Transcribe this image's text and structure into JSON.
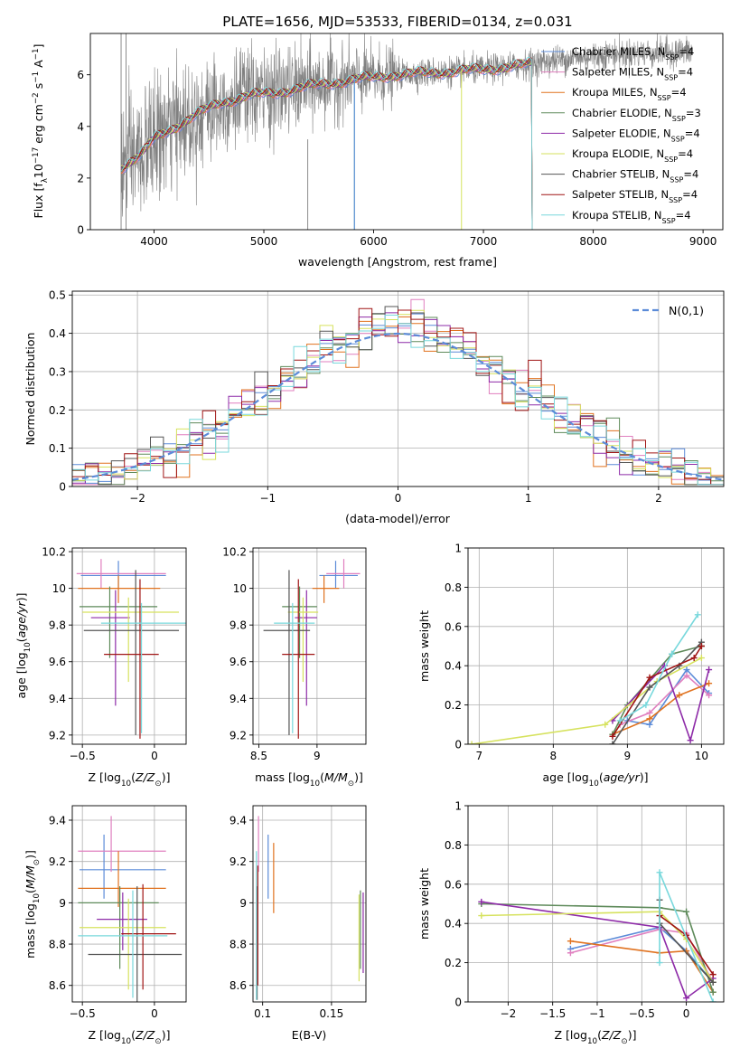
{
  "figure_title": "PLATE=1656, MJD=53533, FIBERID=0134, z=0.031",
  "palette": {
    "Chabrier MILES": "#5b8bd8",
    "Salpeter MILES": "#e07fbf",
    "Kroupa MILES": "#e0721f",
    "Chabrier ELODIE": "#5e8a5a",
    "Salpeter ELODIE": "#8e2ba8",
    "Kroupa ELODIE": "#d6e25e",
    "Chabrier STELIB": "#555555",
    "Salpeter STELIB": "#a01515",
    "Kroupa STELIB": "#78d8dc",
    "data": "#808080"
  },
  "chart_data": [
    {
      "id": "spectrum",
      "type": "line",
      "title": "PLATE=1656, MJD=53533, FIBERID=0134, z=0.031",
      "xlabel": "wavelength [Angstrom, rest frame]",
      "ylabel": "Flux [f_λ 10^-17 erg cm^-2 s^-1 A^-1]",
      "xlim": [
        3420,
        9180
      ],
      "ylim": [
        0,
        7.6
      ],
      "xticks": [
        4000,
        5000,
        6000,
        7000,
        8000,
        9000
      ],
      "yticks": [
        0,
        2,
        4,
        6
      ],
      "legend_position": "right",
      "data_range": [
        3700,
        8900
      ],
      "model_range": [
        3700,
        7440
      ],
      "continuum": {
        "x": [
          3700,
          3900,
          4000,
          4200,
          4400,
          4600,
          4860,
          5100,
          5400,
          5800,
          6200,
          6600,
          7000,
          7400,
          7800,
          8200,
          8600,
          8900
        ],
        "y": [
          2.4,
          3.0,
          3.5,
          4.0,
          4.5,
          4.9,
          5.2,
          5.3,
          5.55,
          5.8,
          6.0,
          6.1,
          6.2,
          6.4,
          6.65,
          6.8,
          6.85,
          6.9
        ]
      },
      "series": [
        {
          "name": "Chabrier MILES, N_SSP=4"
        },
        {
          "name": "Salpeter MILES, N_SSP=4"
        },
        {
          "name": "Kroupa MILES, N_SSP=4"
        },
        {
          "name": "Chabrier ELODIE, N_SSP=3"
        },
        {
          "name": "Salpeter ELODIE, N_SSP=4"
        },
        {
          "name": "Kroupa ELODIE, N_SSP=4"
        },
        {
          "name": "Chabrier STELIB, N_SSP=4"
        },
        {
          "name": "Salpeter STELIB, N_SSP=4"
        },
        {
          "name": "Kroupa STELIB, N_SSP=4"
        }
      ]
    },
    {
      "id": "residuals",
      "type": "histogram",
      "xlabel": "(data-model)/error",
      "ylabel": "Normed distribution",
      "xlim": [
        -2.5,
        2.5
      ],
      "ylim": [
        0,
        0.51
      ],
      "xticks": [
        -2,
        -1,
        0,
        1,
        2
      ],
      "yticks": [
        0,
        0.1,
        0.2,
        0.3,
        0.4,
        0.5
      ],
      "bin_width": 0.1,
      "reference_label": "N(0,1)",
      "legend_position": "top-right"
    },
    {
      "id": "age_vs_Z",
      "type": "errorbar",
      "xlabel": "Z [log10(Z/Z⊙)]",
      "ylabel": "age [log10(age/yr)]",
      "xlim": [
        -0.57,
        0.22
      ],
      "ylim": [
        9.15,
        10.22
      ],
      "xticks": [
        -0.5,
        0.0
      ],
      "yticks": [
        9.2,
        9.4,
        9.6,
        9.8,
        10.0,
        10.2
      ],
      "points": [
        {
          "series": "Chabrier MILES",
          "x": -0.25,
          "xerr": [
            0.26,
            0.33
          ],
          "y": 10.07,
          "yerr": [
            0.07,
            0.08
          ]
        },
        {
          "series": "Salpeter MILES",
          "x": -0.37,
          "xerr": [
            0.17,
            0.45
          ],
          "y": 10.08,
          "yerr": [
            0.08,
            0.08
          ]
        },
        {
          "series": "Kroupa MILES",
          "x": -0.25,
          "xerr": [
            0.28,
            0.29
          ],
          "y": 10.0,
          "yerr": [
            0.08,
            0.07
          ]
        },
        {
          "series": "Chabrier ELODIE",
          "x": -0.31,
          "xerr": [
            0.21,
            0.33
          ],
          "y": 9.9,
          "yerr": [
            0.28,
            0.11
          ]
        },
        {
          "series": "Salpeter ELODIE",
          "x": -0.27,
          "xerr": [
            0.17,
            0.1
          ],
          "y": 9.84,
          "yerr": [
            0.48,
            0.15
          ]
        },
        {
          "series": "Kroupa ELODIE",
          "x": -0.18,
          "xerr": [
            0.32,
            0.35
          ],
          "y": 9.87,
          "yerr": [
            0.38,
            0.08
          ]
        },
        {
          "series": "Chabrier STELIB",
          "x": -0.13,
          "xerr": [
            0.36,
            0.3
          ],
          "y": 9.77,
          "yerr": [
            0.57,
            0.33
          ]
        },
        {
          "series": "Salpeter STELIB",
          "x": -0.1,
          "xerr": [
            0.25,
            0.13
          ],
          "y": 9.64,
          "yerr": [
            0.46,
            0.41
          ]
        },
        {
          "series": "Kroupa STELIB",
          "x": -0.09,
          "xerr": [
            0.28,
            0.33
          ],
          "y": 9.81,
          "yerr": [
            0.6,
            0.11
          ]
        }
      ]
    },
    {
      "id": "age_vs_mass",
      "type": "errorbar",
      "xlabel": "mass [log10(M/M⊙)]",
      "ylabel": "",
      "xlim": [
        8.45,
        9.42
      ],
      "ylim": [
        9.15,
        10.22
      ],
      "xticks": [
        8.5,
        9.0
      ],
      "yticks": [
        9.2,
        9.4,
        9.6,
        9.8,
        10.0,
        10.2
      ],
      "points": [
        {
          "series": "Chabrier MILES",
          "x": 9.16,
          "xerr": [
            0.14,
            0.19
          ],
          "y": 10.07,
          "yerr": [
            0.07,
            0.08
          ]
        },
        {
          "series": "Salpeter MILES",
          "x": 9.23,
          "xerr": [
            0.15,
            0.14
          ],
          "y": 10.08,
          "yerr": [
            0.08,
            0.08
          ]
        },
        {
          "series": "Kroupa MILES",
          "x": 9.06,
          "xerr": [
            0.1,
            0.13
          ],
          "y": 10.0,
          "yerr": [
            0.08,
            0.07
          ]
        },
        {
          "series": "Chabrier ELODIE",
          "x": 8.85,
          "xerr": [
            0.15,
            0.15
          ],
          "y": 9.9,
          "yerr": [
            0.28,
            0.11
          ]
        },
        {
          "series": "Salpeter ELODIE",
          "x": 8.91,
          "xerr": [
            0.1,
            0.09
          ],
          "y": 9.84,
          "yerr": [
            0.48,
            0.15
          ]
        },
        {
          "series": "Kroupa ELODIE",
          "x": 8.88,
          "xerr": [
            0.13,
            0.13
          ],
          "y": 9.87,
          "yerr": [
            0.38,
            0.08
          ]
        },
        {
          "series": "Chabrier STELIB",
          "x": 8.76,
          "xerr": [
            0.22,
            0.18
          ],
          "y": 9.77,
          "yerr": [
            0.57,
            0.33
          ]
        },
        {
          "series": "Salpeter STELIB",
          "x": 8.84,
          "xerr": [
            0.14,
            0.14
          ],
          "y": 9.64,
          "yerr": [
            0.46,
            0.41
          ]
        },
        {
          "series": "Kroupa STELIB",
          "x": 8.79,
          "xerr": [
            0.16,
            0.19
          ],
          "y": 9.81,
          "yerr": [
            0.6,
            0.11
          ]
        }
      ]
    },
    {
      "id": "weight_vs_age",
      "type": "line",
      "xlabel": "age [log10(age/yr)]",
      "ylabel": "mass weight",
      "xlim": [
        6.85,
        10.3
      ],
      "ylim": [
        0,
        1.0
      ],
      "xticks": [
        7,
        8,
        9,
        10
      ],
      "yticks": [
        0.0,
        0.2,
        0.4,
        0.6,
        0.8,
        1.0
      ],
      "series": [
        {
          "name": "Chabrier MILES",
          "x": [
            9.0,
            9.3,
            9.8,
            10.1
          ],
          "y": [
            0.12,
            0.1,
            0.38,
            0.26
          ]
        },
        {
          "name": "Salpeter MILES",
          "x": [
            8.9,
            9.3,
            9.8,
            10.1
          ],
          "y": [
            0.1,
            0.16,
            0.35,
            0.25
          ]
        },
        {
          "name": "Kroupa MILES",
          "x": [
            8.8,
            9.3,
            9.7,
            10.1
          ],
          "y": [
            0.05,
            0.13,
            0.25,
            0.31
          ]
        },
        {
          "name": "Chabrier ELODIE",
          "x": [
            8.8,
            9.0,
            9.6,
            10.0
          ],
          "y": [
            0.05,
            0.2,
            0.46,
            0.5
          ]
        },
        {
          "name": "Salpeter ELODIE",
          "x": [
            8.8,
            9.5,
            9.85,
            10.1
          ],
          "y": [
            0.12,
            0.4,
            0.02,
            0.38
          ]
        },
        {
          "name": "Kroupa ELODIE",
          "x": [
            6.9,
            8.7,
            9.4,
            10.0
          ],
          "y": [
            0.0,
            0.1,
            0.32,
            0.44
          ]
        },
        {
          "name": "Chabrier STELIB",
          "x": [
            8.8,
            9.3,
            9.7,
            10.0
          ],
          "y": [
            0.0,
            0.29,
            0.4,
            0.52
          ]
        },
        {
          "name": "Salpeter STELIB",
          "x": [
            8.8,
            9.3,
            9.9,
            10.0
          ],
          "y": [
            0.04,
            0.34,
            0.44,
            0.5
          ]
        },
        {
          "name": "Kroupa STELIB",
          "x": [
            8.9,
            9.25,
            9.6,
            9.95
          ],
          "y": [
            0.12,
            0.2,
            0.46,
            0.66
          ]
        }
      ]
    },
    {
      "id": "mass_vs_Z",
      "type": "errorbar",
      "xlabel": "Z [log10(Z/Z⊙)]",
      "ylabel": "mass [log10(M/M⊙)]",
      "xlim": [
        -0.57,
        0.22
      ],
      "ylim": [
        8.52,
        9.47
      ],
      "xticks": [
        -0.5,
        0.0
      ],
      "yticks": [
        8.6,
        8.8,
        9.0,
        9.2,
        9.4
      ],
      "points": [
        {
          "series": "Chabrier MILES",
          "x": -0.35,
          "xerr": [
            0.17,
            0.43
          ],
          "y": 9.16,
          "yerr": [
            0.14,
            0.17
          ]
        },
        {
          "series": "Salpeter MILES",
          "x": -0.3,
          "xerr": [
            0.23,
            0.38
          ],
          "y": 9.25,
          "yerr": [
            0.1,
            0.17
          ]
        },
        {
          "series": "Kroupa MILES",
          "x": -0.25,
          "xerr": [
            0.28,
            0.33
          ],
          "y": 9.07,
          "yerr": [
            0.09,
            0.18
          ]
        },
        {
          "series": "Chabrier ELODIE",
          "x": -0.24,
          "xerr": [
            0.29,
            0.27
          ],
          "y": 9.0,
          "yerr": [
            0.32,
            0.08
          ]
        },
        {
          "series": "Salpeter ELODIE",
          "x": -0.22,
          "xerr": [
            0.18,
            0.17
          ],
          "y": 8.92,
          "yerr": [
            0.15,
            0.13
          ]
        },
        {
          "series": "Kroupa ELODIE",
          "x": -0.18,
          "xerr": [
            0.34,
            0.26
          ],
          "y": 8.88,
          "yerr": [
            0.3,
            0.14
          ]
        },
        {
          "series": "Chabrier STELIB",
          "x": -0.12,
          "xerr": [
            0.34,
            0.31
          ],
          "y": 8.75,
          "yerr": [
            0.23,
            0.33
          ]
        },
        {
          "series": "Salpeter STELIB",
          "x": -0.08,
          "xerr": [
            0.15,
            0.23
          ],
          "y": 8.85,
          "yerr": [
            0.27,
            0.24
          ]
        },
        {
          "series": "Kroupa STELIB",
          "x": -0.15,
          "xerr": [
            0.38,
            0.24
          ],
          "y": 8.84,
          "yerr": [
            0.3,
            0.22
          ]
        }
      ]
    },
    {
      "id": "mass_vs_ebv",
      "type": "errorbar",
      "xlabel": "E(B-V)",
      "ylabel": "",
      "xlim": [
        0.093,
        0.175
      ],
      "ylim": [
        8.52,
        9.47
      ],
      "xticks": [
        0.1,
        0.15
      ],
      "yticks": [
        8.6,
        8.8,
        9.0,
        9.2,
        9.4
      ],
      "points": [
        {
          "series": "Chabrier MILES",
          "x": 0.104,
          "y": 9.16,
          "yerr": [
            0.14,
            0.17
          ]
        },
        {
          "series": "Salpeter MILES",
          "x": 0.097,
          "y": 9.25,
          "yerr": [
            0.1,
            0.17
          ]
        },
        {
          "series": "Kroupa MILES",
          "x": 0.108,
          "y": 9.07,
          "yerr": [
            0.12,
            0.22
          ]
        },
        {
          "series": "Chabrier ELODIE",
          "x": 0.171,
          "y": 9.0,
          "yerr": [
            0.32,
            0.06
          ]
        },
        {
          "series": "Salpeter ELODIE",
          "x": 0.173,
          "y": 8.86,
          "yerr": [
            0.2,
            0.19
          ]
        },
        {
          "series": "Kroupa ELODIE",
          "x": 0.17,
          "y": 8.84,
          "yerr": [
            0.22,
            0.2
          ]
        },
        {
          "series": "Chabrier STELIB",
          "x": 0.096,
          "y": 8.75,
          "yerr": [
            0.22,
            0.33
          ]
        },
        {
          "series": "Salpeter STELIB",
          "x": 0.0965,
          "y": 8.85,
          "yerr": [
            0.25,
            0.33
          ]
        },
        {
          "series": "Kroupa STELIB",
          "x": 0.0955,
          "y": 8.75,
          "yerr": [
            0.22,
            0.5
          ]
        }
      ]
    },
    {
      "id": "weight_vs_Z",
      "type": "line",
      "xlabel": "Z [log10(Z/Z⊙)]",
      "ylabel": "mass weight",
      "xlim": [
        -2.45,
        0.42
      ],
      "ylim": [
        0,
        1.0
      ],
      "xticks": [
        -2.0,
        -1.5,
        -1.0,
        -0.5,
        0.0
      ],
      "yticks": [
        0.0,
        0.2,
        0.4,
        0.6,
        0.8,
        1.0
      ],
      "series": [
        {
          "name": "Chabrier MILES",
          "x": [
            -1.3,
            -0.3,
            0.0,
            0.3
          ],
          "y": [
            0.27,
            0.38,
            0.26,
            0.1
          ]
        },
        {
          "name": "Salpeter MILES",
          "x": [
            -1.3,
            -0.3,
            0.0,
            0.3
          ],
          "y": [
            0.25,
            0.37,
            0.35,
            0.1
          ]
        },
        {
          "name": "Kroupa MILES",
          "x": [
            -1.3,
            -0.3,
            0.0,
            0.3
          ],
          "y": [
            0.31,
            0.25,
            0.26,
            0.05
          ]
        },
        {
          "name": "Chabrier ELODIE",
          "x": [
            -2.3,
            -0.3,
            0.0,
            0.3
          ],
          "y": [
            0.5,
            0.48,
            0.46,
            0.05
          ]
        },
        {
          "name": "Salpeter ELODIE",
          "x": [
            -2.3,
            -0.3,
            0.0,
            0.3
          ],
          "y": [
            0.51,
            0.38,
            0.02,
            0.12
          ]
        },
        {
          "name": "Kroupa ELODIE",
          "x": [
            -2.3,
            -0.3,
            0.0,
            0.3
          ],
          "y": [
            0.44,
            0.46,
            0.32,
            0.1
          ]
        },
        {
          "name": "Chabrier STELIB",
          "x": [
            -0.3,
            -0.3,
            0.3
          ],
          "y": [
            0.52,
            0.4,
            0.1
          ]
        },
        {
          "name": "Salpeter STELIB",
          "x": [
            -0.3,
            0.0,
            0.3
          ],
          "y": [
            0.44,
            0.34,
            0.14
          ]
        },
        {
          "name": "Kroupa STELIB",
          "x": [
            -0.3,
            -0.3,
            0.3
          ],
          "y": [
            0.2,
            0.66,
            0.0
          ]
        }
      ]
    }
  ]
}
